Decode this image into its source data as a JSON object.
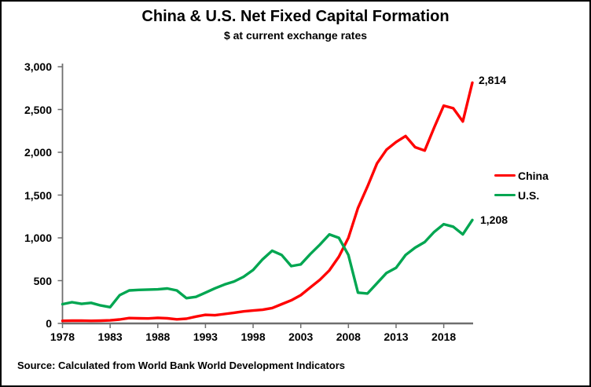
{
  "header": {
    "title": "China & U.S. Net Fixed Capital Formation",
    "subtitle": "$ at current exchange rates"
  },
  "source_note": "Source:  Calculated from World Bank World Development Indicators",
  "chart_data": {
    "type": "line",
    "title": "China & U.S. Net Fixed Capital Formation",
    "subtitle": "$ at current exchange rates",
    "xlabel": "",
    "ylabel": "",
    "xlim": [
      1978,
      2021
    ],
    "ylim": [
      0,
      3000
    ],
    "grid": false,
    "legend_position": "right-middle",
    "axis_color": "#6e6e6e",
    "x_ticks": [
      1978,
      1983,
      1988,
      1993,
      1998,
      2003,
      2008,
      2013,
      2018
    ],
    "x_tick_labels": [
      "1978",
      "1983",
      "1988",
      "1993",
      "1998",
      "2003",
      "2008",
      "2013",
      "2018"
    ],
    "y_ticks": [
      0,
      500,
      1000,
      1500,
      2000,
      2500,
      3000
    ],
    "y_tick_labels": [
      "0",
      "500",
      "1,000",
      "1,500",
      "2,000",
      "2,500",
      "3,000"
    ],
    "x": [
      1978,
      1979,
      1980,
      1981,
      1982,
      1983,
      1984,
      1985,
      1986,
      1987,
      1988,
      1989,
      1990,
      1991,
      1992,
      1993,
      1994,
      1995,
      1996,
      1997,
      1998,
      1999,
      2000,
      2001,
      2002,
      2003,
      2004,
      2005,
      2006,
      2007,
      2008,
      2009,
      2010,
      2011,
      2012,
      2013,
      2014,
      2015,
      2016,
      2017,
      2018,
      2019,
      2020,
      2021
    ],
    "series": [
      {
        "key": "china",
        "name": "China",
        "color": "#ff0000",
        "end_label": "2,814",
        "values": [
          30,
          32,
          33,
          30,
          32,
          36,
          46,
          62,
          60,
          58,
          65,
          60,
          48,
          55,
          80,
          100,
          95,
          110,
          125,
          140,
          150,
          160,
          180,
          225,
          270,
          330,
          420,
          510,
          620,
          780,
          1000,
          1350,
          1600,
          1870,
          2030,
          2120,
          2190,
          2060,
          2020,
          2290,
          2545,
          2515,
          2360,
          2814
        ]
      },
      {
        "key": "us",
        "name": "U.S.",
        "color": "#00a651",
        "end_label": "1,208",
        "values": [
          225,
          248,
          228,
          240,
          210,
          190,
          330,
          385,
          392,
          395,
          398,
          408,
          385,
          295,
          310,
          360,
          410,
          455,
          490,
          545,
          625,
          750,
          850,
          800,
          670,
          690,
          810,
          920,
          1040,
          1000,
          800,
          360,
          350,
          470,
          590,
          650,
          800,
          885,
          950,
          1070,
          1160,
          1130,
          1040,
          1208
        ]
      }
    ],
    "end_labels": {
      "china": "2,814",
      "us": "1,208"
    }
  }
}
